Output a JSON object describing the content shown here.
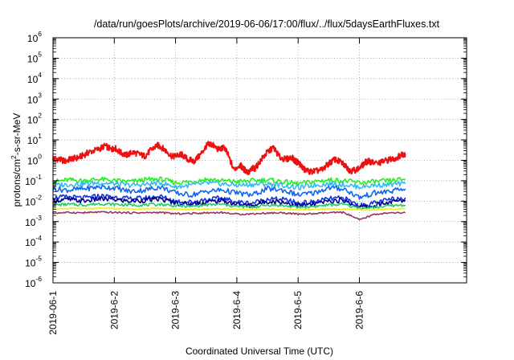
{
  "chart_data": {
    "type": "line",
    "title": "/data/run/goesPlots/archive/2019-06-06/17:00/flux/../flux/5daysEarthFluxes.txt",
    "xlabel": "Coordinated Universal Time (UTC)",
    "ylabel": {
      "prefix": "protons/cm",
      "sup": "2",
      "suffix": "-s-sr-MeV"
    },
    "yscale": "log",
    "ylim": [
      1e-06,
      1000000.0
    ],
    "xlim": [
      0,
      6.75
    ],
    "grid": true,
    "x_ticks": [
      {
        "x": 0,
        "label": "2019-06-1"
      },
      {
        "x": 1,
        "label": "2019-6-2"
      },
      {
        "x": 2,
        "label": "2019-6-3"
      },
      {
        "x": 3,
        "label": "2019-6-4"
      },
      {
        "x": 4,
        "label": "2019-6-5"
      },
      {
        "x": 5,
        "label": "2019-6-6"
      }
    ],
    "y_ticks": [
      {
        "exp": 6,
        "label": "10",
        "sup": "6"
      },
      {
        "exp": 5,
        "label": "10",
        "sup": "5"
      },
      {
        "exp": 4,
        "label": "10",
        "sup": "4"
      },
      {
        "exp": 3,
        "label": "10",
        "sup": "3"
      },
      {
        "exp": 2,
        "label": "10",
        "sup": "2"
      },
      {
        "exp": 1,
        "label": "10",
        "sup": "1"
      },
      {
        "exp": 0,
        "label": "10",
        "sup": "0"
      },
      {
        "exp": -1,
        "label": "10",
        "sup": "-1"
      },
      {
        "exp": -2,
        "label": "10",
        "sup": "-2"
      },
      {
        "exp": -3,
        "label": "10",
        "sup": "-3"
      },
      {
        "exp": -4,
        "label": "10",
        "sup": "-4"
      },
      {
        "exp": -5,
        "label": "10",
        "sup": "-5"
      },
      {
        "exp": -6,
        "label": "10",
        "sup": "-6"
      }
    ],
    "series": [
      {
        "color": "#ee1111",
        "x": [
          0,
          0.1,
          0.2,
          0.3,
          0.4,
          0.5,
          0.6,
          0.75,
          0.85,
          0.95,
          1.0,
          1.1,
          1.2,
          1.3,
          1.4,
          1.5,
          1.6,
          1.7,
          1.75,
          1.85,
          1.95,
          2.05,
          2.1,
          2.2,
          2.3,
          2.4,
          2.5,
          2.55,
          2.6,
          2.7,
          2.8,
          2.85,
          2.95,
          3.05,
          3.1,
          3.15,
          3.2,
          3.25,
          3.3,
          3.4,
          3.5,
          3.6,
          3.7,
          3.8,
          3.9,
          3.95,
          4.0,
          4.05,
          4.1,
          4.2,
          4.3,
          4.4,
          4.5,
          4.6,
          4.7,
          4.8,
          4.85,
          4.9,
          5.0,
          5.1,
          5.15,
          5.2,
          5.3,
          5.4,
          5.5,
          5.6,
          5.7,
          5.75
        ],
        "y": [
          1.3,
          1.1,
          0.9,
          1.2,
          1.3,
          1.8,
          2.6,
          3.5,
          5.2,
          3.3,
          4.2,
          2.4,
          1.8,
          2.5,
          2.0,
          1.6,
          3.2,
          5.5,
          4.8,
          2.8,
          1.5,
          1.8,
          1.9,
          1.1,
          0.9,
          1.8,
          4.8,
          6.5,
          5.7,
          3.4,
          4.2,
          2.0,
          0.35,
          0.6,
          0.4,
          0.3,
          0.25,
          0.4,
          0.4,
          1.1,
          2.5,
          4.2,
          1.4,
          1.1,
          1.4,
          0.9,
          0.8,
          0.55,
          0.35,
          0.28,
          0.3,
          0.35,
          0.7,
          1.1,
          0.8,
          0.45,
          0.3,
          0.32,
          0.4,
          0.8,
          0.9,
          0.8,
          0.7,
          0.9,
          1.1,
          1.3,
          2.0,
          2.1
        ]
      },
      {
        "color": "#22ee22",
        "x": [
          0,
          0.25,
          0.5,
          0.75,
          1.0,
          1.25,
          1.5,
          1.75,
          2.0,
          2.25,
          2.5,
          2.75,
          3.0,
          3.25,
          3.5,
          3.75,
          4.0,
          4.25,
          4.5,
          4.75,
          5.0,
          5.25,
          5.5,
          5.75
        ],
        "y": [
          0.09,
          0.11,
          0.1,
          0.12,
          0.1,
          0.09,
          0.11,
          0.12,
          0.08,
          0.09,
          0.12,
          0.1,
          0.09,
          0.1,
          0.11,
          0.09,
          0.07,
          0.09,
          0.11,
          0.1,
          0.08,
          0.09,
          0.1,
          0.12
        ]
      },
      {
        "color": "#33bbee",
        "x": [
          0,
          0.25,
          0.5,
          0.75,
          1.0,
          1.25,
          1.5,
          1.75,
          2.0,
          2.25,
          2.5,
          2.75,
          3.0,
          3.25,
          3.5,
          3.75,
          4.0,
          4.25,
          4.5,
          4.75,
          5.0,
          5.25,
          5.5,
          5.75
        ],
        "y": [
          0.06,
          0.065,
          0.07,
          0.08,
          0.07,
          0.06,
          0.065,
          0.08,
          0.05,
          0.06,
          0.075,
          0.07,
          0.06,
          0.065,
          0.07,
          0.06,
          0.045,
          0.06,
          0.07,
          0.065,
          0.05,
          0.06,
          0.065,
          0.07
        ]
      },
      {
        "color": "#1166ee",
        "x": [
          0,
          0.25,
          0.5,
          0.75,
          1.0,
          1.25,
          1.5,
          1.75,
          2.0,
          2.25,
          2.5,
          2.75,
          3.0,
          3.25,
          3.5,
          3.75,
          4.0,
          4.25,
          4.5,
          4.75,
          5.0,
          5.25,
          5.5,
          5.75
        ],
        "y": [
          0.04,
          0.035,
          0.04,
          0.05,
          0.045,
          0.03,
          0.035,
          0.05,
          0.025,
          0.02,
          0.03,
          0.035,
          0.025,
          0.02,
          0.04,
          0.035,
          0.02,
          0.025,
          0.045,
          0.04,
          0.015,
          0.025,
          0.03,
          0.04
        ]
      },
      {
        "color": "#1133dd",
        "x": [
          0,
          0.25,
          0.5,
          0.75,
          1.0,
          1.25,
          1.5,
          1.75,
          2.0,
          2.25,
          2.5,
          2.75,
          3.0,
          3.25,
          3.5,
          3.75,
          4.0,
          4.25,
          4.5,
          4.75,
          5.0,
          5.25,
          5.5,
          5.75
        ],
        "y": [
          0.015,
          0.016,
          0.014,
          0.018,
          0.016,
          0.013,
          0.014,
          0.017,
          0.01,
          0.009,
          0.012,
          0.014,
          0.009,
          0.008,
          0.013,
          0.012,
          0.008,
          0.009,
          0.013,
          0.014,
          0.006,
          0.008,
          0.012,
          0.015
        ]
      },
      {
        "color": "#00008b",
        "x": [
          0,
          0.25,
          0.5,
          0.75,
          1.0,
          1.25,
          1.5,
          1.75,
          2.0,
          2.25,
          2.5,
          2.75,
          3.0,
          3.25,
          3.5,
          3.75,
          4.0,
          4.25,
          4.5,
          4.75,
          5.0,
          5.25,
          5.5,
          5.75
        ],
        "y": [
          0.011,
          0.012,
          0.01,
          0.013,
          0.012,
          0.01,
          0.011,
          0.013,
          0.008,
          0.007,
          0.009,
          0.011,
          0.007,
          0.006,
          0.01,
          0.009,
          0.006,
          0.007,
          0.01,
          0.011,
          0.005,
          0.006,
          0.009,
          0.011
        ]
      },
      {
        "color": "#22cc66",
        "x": [
          0,
          0.25,
          0.5,
          0.75,
          1.0,
          1.25,
          1.5,
          1.75,
          2.0,
          2.25,
          2.5,
          2.75,
          3.0,
          3.25,
          3.5,
          3.75,
          4.0,
          4.25,
          4.5,
          4.75,
          5.0,
          5.25,
          5.5,
          5.75
        ],
        "y": [
          0.0065,
          0.007,
          0.0065,
          0.0075,
          0.007,
          0.0065,
          0.0065,
          0.007,
          0.006,
          0.0055,
          0.0065,
          0.007,
          0.0055,
          0.005,
          0.0065,
          0.006,
          0.005,
          0.0055,
          0.0065,
          0.007,
          0.0045,
          0.005,
          0.006,
          0.0065
        ]
      },
      {
        "color": "#eeee11",
        "x": [
          0,
          0.25,
          0.5,
          0.75,
          1.0,
          1.25,
          1.5,
          1.75,
          2.0,
          2.25,
          2.5,
          2.75,
          3.0,
          3.25,
          3.5,
          3.75,
          4.0,
          4.25,
          4.5,
          4.75,
          5.0,
          5.25,
          5.5,
          5.75
        ],
        "y": [
          0.0042,
          0.0044,
          0.0042,
          0.0045,
          0.0043,
          0.0042,
          0.0042,
          0.0044,
          0.004,
          0.0039,
          0.0041,
          0.0043,
          0.0039,
          0.0038,
          0.0041,
          0.004,
          0.0038,
          0.0039,
          0.0041,
          0.0042,
          0.0037,
          0.0038,
          0.004,
          0.0042
        ]
      },
      {
        "color": "#993366",
        "x": [
          0,
          0.25,
          0.5,
          0.75,
          1.0,
          1.25,
          1.5,
          1.75,
          2.0,
          2.25,
          2.5,
          2.75,
          3.0,
          3.25,
          3.5,
          3.75,
          4.0,
          4.25,
          4.5,
          4.75,
          5.0,
          5.25,
          5.5,
          5.75
        ],
        "y": [
          0.0026,
          0.0028,
          0.0027,
          0.0029,
          0.0028,
          0.0027,
          0.0027,
          0.0028,
          0.0024,
          0.0025,
          0.0027,
          0.0028,
          0.0023,
          0.0024,
          0.0026,
          0.0027,
          0.0023,
          0.0024,
          0.0027,
          0.0028,
          0.0012,
          0.0023,
          0.0026,
          0.0027
        ]
      }
    ]
  }
}
